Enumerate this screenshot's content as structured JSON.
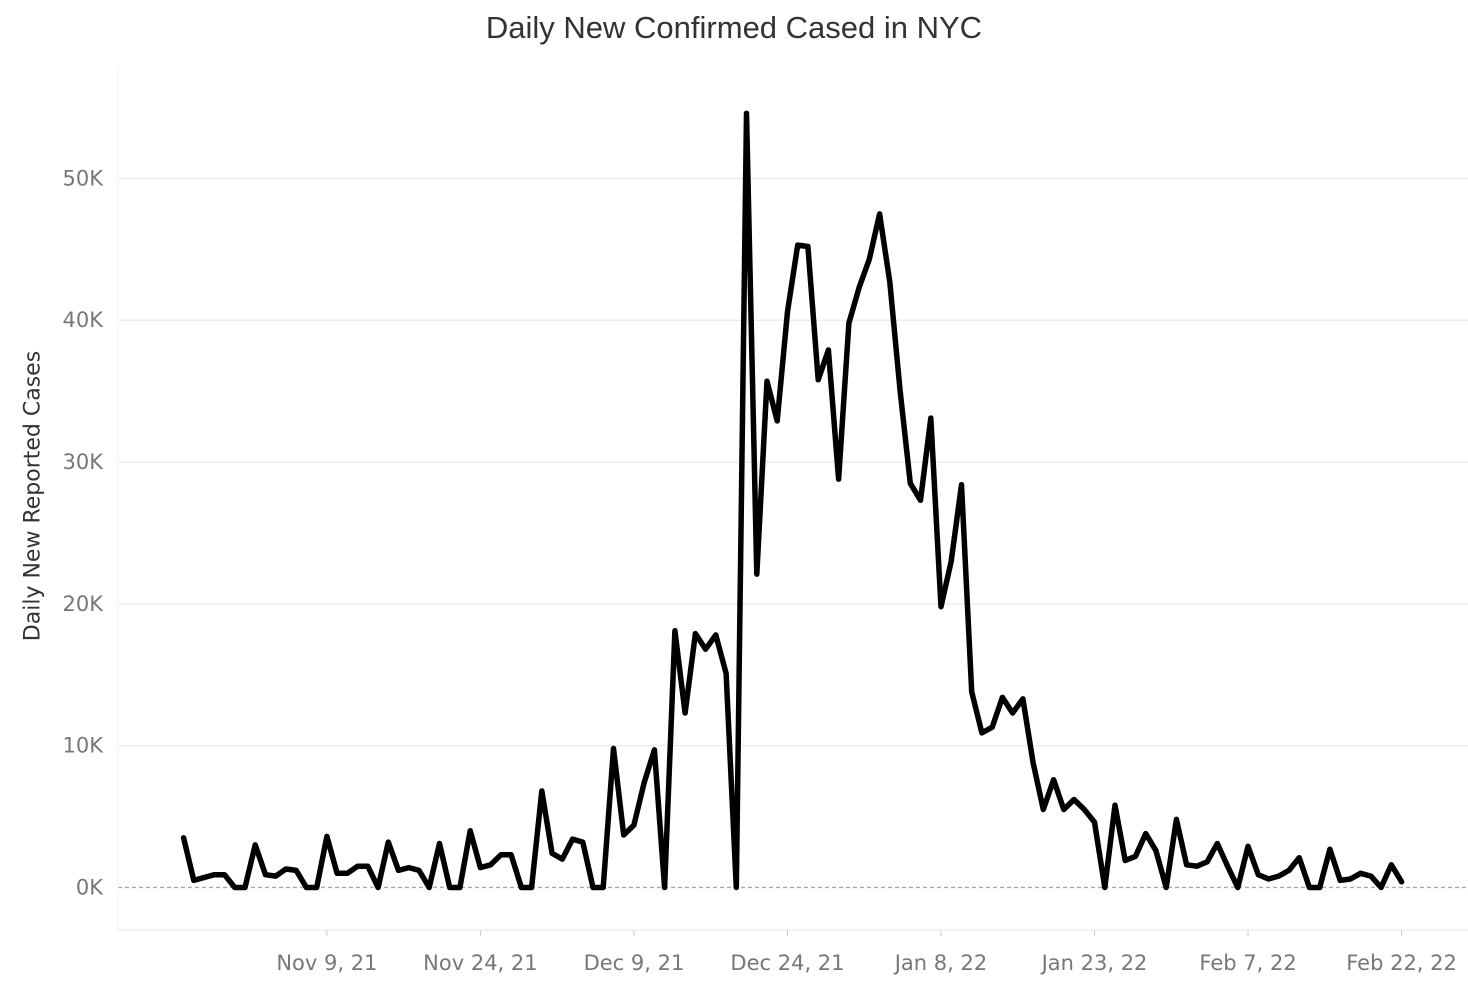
{
  "chart_data": {
    "type": "line",
    "title": "Daily New Confirmed Cased in NYC",
    "xlabel": "",
    "ylabel": "Daily New Reported Cases",
    "start_date": "2021-10-26",
    "x_tick_labels": [
      "Nov 9, 21",
      "Nov 24, 21",
      "Dec 9, 21",
      "Dec 24, 21",
      "Jan 8, 22",
      "Jan 23, 22",
      "Feb 7, 22",
      "Feb 22, 22"
    ],
    "x_tick_dates": [
      "2021-11-09",
      "2021-11-24",
      "2021-12-09",
      "2021-12-24",
      "2022-01-08",
      "2022-01-23",
      "2022-02-07",
      "2022-02-22"
    ],
    "x_range": [
      "2021-10-20",
      "2022-03-09"
    ],
    "y_ticks": [
      0,
      10000,
      20000,
      30000,
      40000,
      50000
    ],
    "y_tick_labels": [
      "0K",
      "10K",
      "20K",
      "30K",
      "40K",
      "50K"
    ],
    "ylim": [
      -3000,
      58000
    ],
    "grid": "horizontal",
    "line_color": "#000000",
    "grid_color": "#eaeaea",
    "zero_line_color": "#aaaaaa",
    "series": [
      {
        "values": [
          3500,
          500,
          700,
          900,
          900,
          0,
          0,
          3000,
          900,
          800,
          1300,
          1200,
          0,
          0,
          3600,
          1000,
          1000,
          1500,
          1500,
          0,
          3200,
          1200,
          1400,
          1200,
          0,
          3100,
          0,
          0,
          4000,
          1400,
          1600,
          2300,
          2300,
          0,
          0,
          6800,
          2400,
          2000,
          3400,
          3200,
          0,
          0,
          9800,
          3700,
          4400,
          7400,
          9700,
          0,
          18100,
          12300,
          17900,
          16800,
          17800,
          15100,
          0,
          54600,
          22100,
          35700,
          32900,
          40600,
          45300,
          45200,
          35800,
          37900,
          28800,
          39800,
          42300,
          44300,
          47500,
          42700,
          35100,
          28500,
          27300,
          33100,
          19800,
          23000,
          28400,
          13800,
          10900,
          11300,
          13400,
          12300,
          13300,
          8800,
          5500,
          7600,
          5500,
          6200,
          5500,
          4600,
          0,
          5800,
          1900,
          2200,
          3800,
          2600,
          0,
          4800,
          1600,
          1500,
          1800,
          3100,
          1500,
          0,
          2900,
          900,
          600,
          800,
          1200,
          2100,
          0,
          0,
          2700,
          500,
          600,
          1000,
          800,
          0,
          1600,
          400
        ]
      }
    ]
  }
}
